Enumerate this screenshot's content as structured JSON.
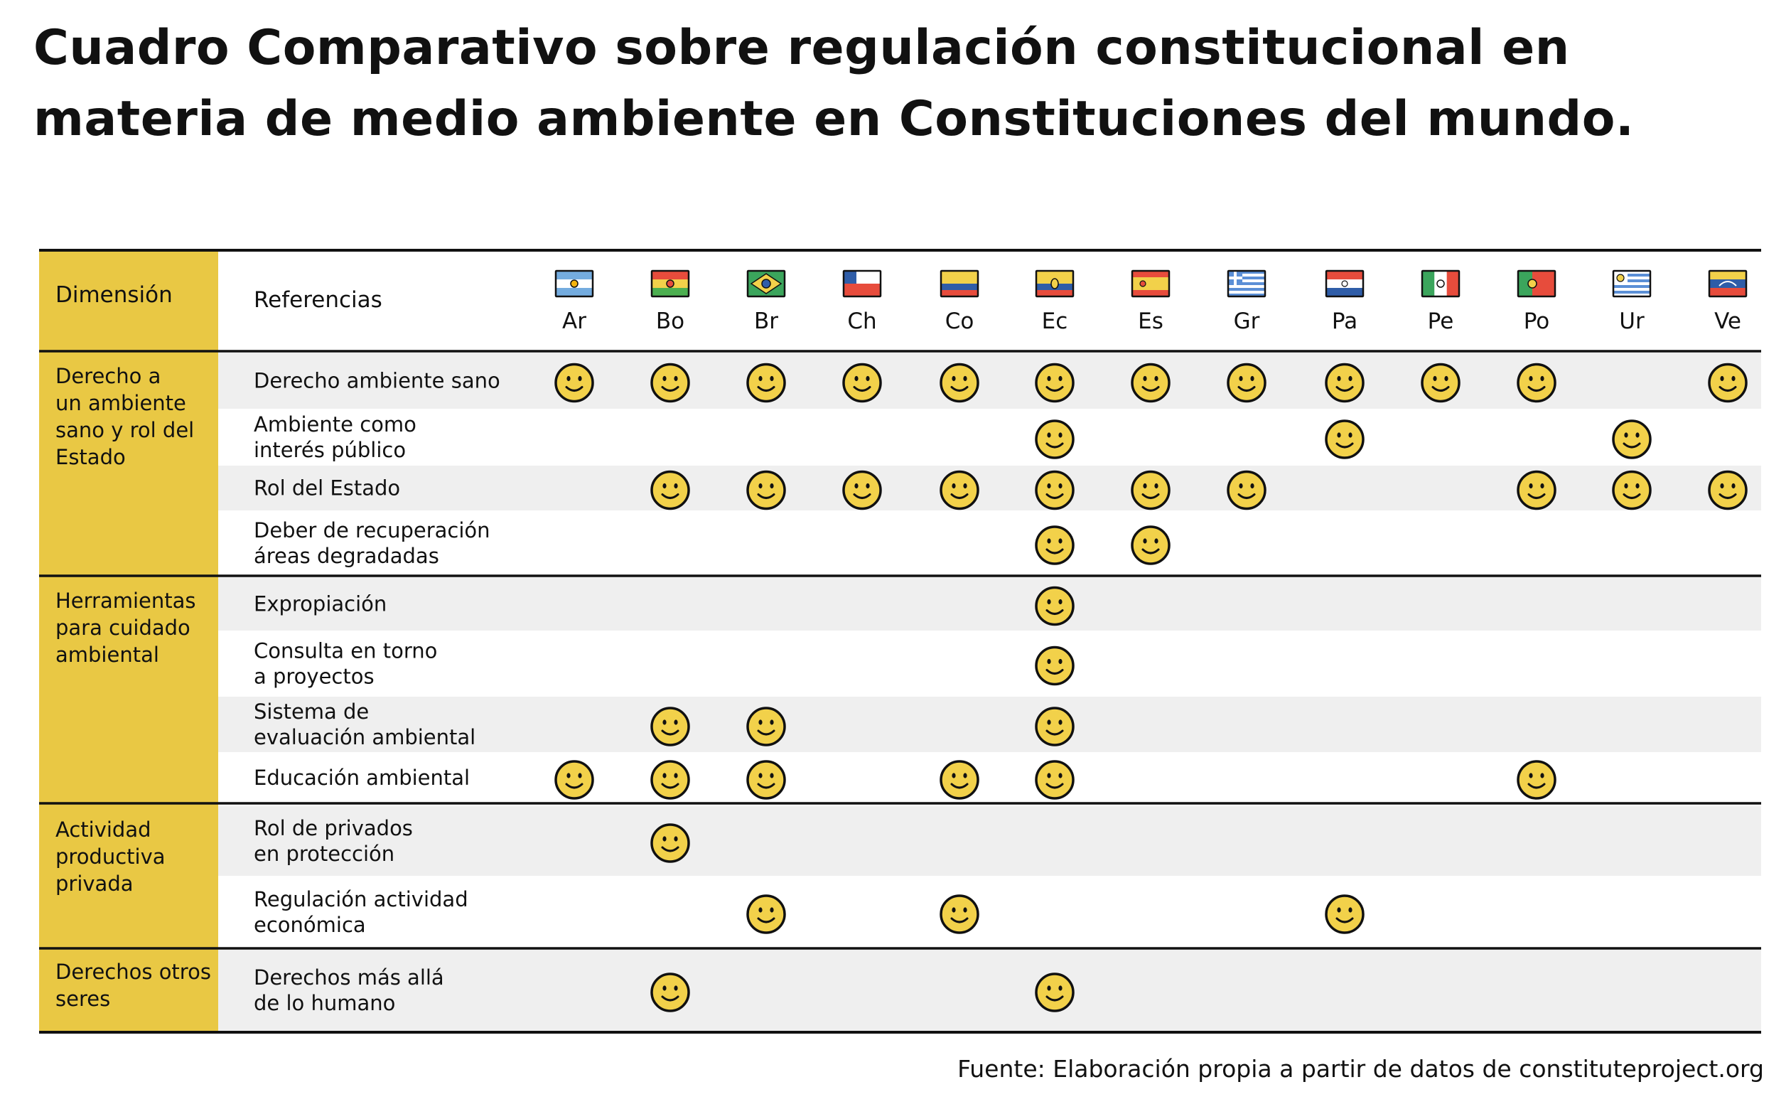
{
  "title": "Cuadro Comparativo sobre regulación constitucional en materia de medio ambiente en Constituciones del mundo.",
  "source": "Fuente: Elaboración propia a partir de datos de constituteproject.org",
  "chart_data": {
    "type": "table",
    "dimension_header": "Dimensión",
    "reference_header": "Referencias",
    "marker": "smiley-icon",
    "colors": {
      "accent": "#E9C844",
      "stripe": "#EFEFEF",
      "smiley": "#F2D14A",
      "line": "#111111"
    },
    "countries": [
      {
        "code": "Ar",
        "flag": "argentina-flag-icon"
      },
      {
        "code": "Bo",
        "flag": "bolivia-flag-icon"
      },
      {
        "code": "Br",
        "flag": "brazil-flag-icon"
      },
      {
        "code": "Ch",
        "flag": "chile-flag-icon"
      },
      {
        "code": "Co",
        "flag": "colombia-flag-icon"
      },
      {
        "code": "Ec",
        "flag": "ecuador-flag-icon"
      },
      {
        "code": "Es",
        "flag": "spain-flag-icon"
      },
      {
        "code": "Gr",
        "flag": "greece-flag-icon"
      },
      {
        "code": "Pa",
        "flag": "paraguay-flag-icon"
      },
      {
        "code": "Pe",
        "flag": "mexico-flag-icon"
      },
      {
        "code": "Po",
        "flag": "portugal-flag-icon"
      },
      {
        "code": "Ur",
        "flag": "uruguay-flag-icon"
      },
      {
        "code": "Ve",
        "flag": "venezuela-flag-icon"
      }
    ],
    "groups": [
      {
        "dimension": [
          "Derecho a",
          "un ambiente",
          "sano y rol del",
          "Estado"
        ],
        "rows": [
          {
            "reference": [
              "Derecho ambiente sano"
            ],
            "marks": [
              "Ar",
              "Bo",
              "Br",
              "Ch",
              "Co",
              "Ec",
              "Es",
              "Gr",
              "Pa",
              "Pe",
              "Po",
              "Ve"
            ]
          },
          {
            "reference": [
              "Ambiente como",
              "interés público"
            ],
            "marks": [
              "Ec",
              "Pa",
              "Ur"
            ]
          },
          {
            "reference": [
              "Rol del Estado"
            ],
            "marks": [
              "Bo",
              "Br",
              "Ch",
              "Co",
              "Ec",
              "Es",
              "Gr",
              "Po",
              "Ur",
              "Ve"
            ]
          },
          {
            "reference": [
              "Deber de recuperación",
              "áreas degradadas"
            ],
            "marks": [
              "Ec",
              "Es"
            ]
          }
        ]
      },
      {
        "dimension": [
          "Herramientas",
          "para cuidado",
          "ambiental"
        ],
        "rows": [
          {
            "reference": [
              "Expropiación"
            ],
            "marks": [
              "Ec"
            ]
          },
          {
            "reference": [
              "Consulta en torno",
              "a proyectos"
            ],
            "marks": [
              "Ec"
            ]
          },
          {
            "reference": [
              "Sistema de",
              "evaluación ambiental"
            ],
            "marks": [
              "Bo",
              "Br",
              "Ec"
            ]
          },
          {
            "reference": [
              "Educación ambiental"
            ],
            "marks": [
              "Ar",
              "Bo",
              "Br",
              "Co",
              "Ec",
              "Po"
            ]
          }
        ]
      },
      {
        "dimension": [
          "Actividad",
          "productiva",
          "privada"
        ],
        "rows": [
          {
            "reference": [
              "Rol de privados",
              "en protección"
            ],
            "marks": [
              "Bo"
            ]
          },
          {
            "reference": [
              "Regulación actividad",
              "económica"
            ],
            "marks": [
              "Br",
              "Co",
              "Pa"
            ]
          }
        ]
      },
      {
        "dimension": [
          "Derechos otros",
          "seres"
        ],
        "rows": [
          {
            "reference": [
              "Derechos más allá",
              "de lo humano"
            ],
            "marks": [
              "Bo",
              "Ec"
            ]
          }
        ]
      }
    ]
  }
}
